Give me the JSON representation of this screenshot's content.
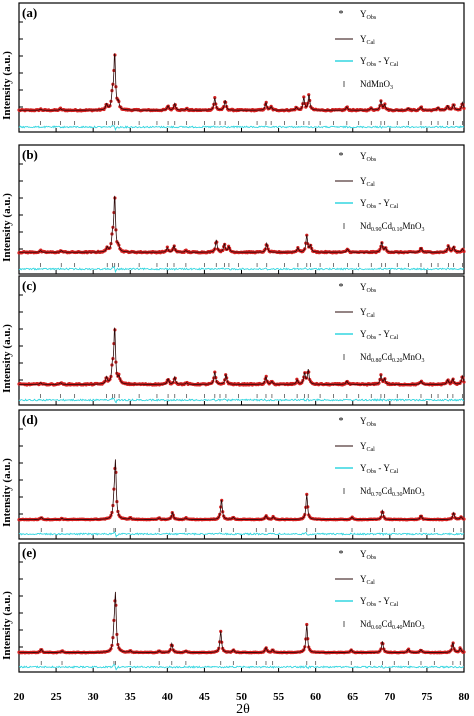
{
  "chart_data": {
    "type": "line",
    "xlabel": "2θ",
    "ylabel": "Intensity (a.u.)",
    "xlim": [
      20,
      80
    ],
    "x_ticks": [
      20,
      25,
      30,
      35,
      40,
      45,
      50,
      55,
      60,
      65,
      70,
      75,
      80
    ],
    "colors": {
      "obs": "#d42020",
      "cal": "#2a0808",
      "diff": "#33d6e0",
      "bragg": "#555555"
    },
    "panels": [
      {
        "label": "(a)",
        "legend": {
          "obs": "Y",
          "obs_sub": "Obs",
          "cal": "Y",
          "cal_sub": "Cal",
          "diff_a": "Y",
          "diff_a_sub": "Obs",
          "diff_mid": " - Y",
          "diff_b_sub": "Cal",
          "phase": [
            [
              "NdMnO",
              ""
            ],
            [
              "3",
              "sub"
            ]
          ]
        },
        "baseline": 0.12,
        "noise": 0.012,
        "peaks": [
          [
            22.9,
            0.02
          ],
          [
            25.6,
            0.03
          ],
          [
            31.8,
            0.1
          ],
          [
            32.6,
            0.28
          ],
          [
            32.9,
            1.0
          ],
          [
            33.4,
            0.12
          ],
          [
            40.1,
            0.08
          ],
          [
            41.0,
            0.12
          ],
          [
            42.6,
            0.03
          ],
          [
            46.4,
            0.22
          ],
          [
            47.8,
            0.18
          ],
          [
            53.3,
            0.14
          ],
          [
            54.0,
            0.06
          ],
          [
            57.4,
            0.05
          ],
          [
            58.4,
            0.22
          ],
          [
            59.1,
            0.28
          ],
          [
            64.2,
            0.06
          ],
          [
            67.5,
            0.04
          ],
          [
            68.8,
            0.17
          ],
          [
            69.3,
            0.1
          ],
          [
            72.5,
            0.04
          ],
          [
            74.2,
            0.06
          ],
          [
            76.5,
            0.05
          ],
          [
            77.8,
            0.08
          ],
          [
            78.6,
            0.1
          ],
          [
            79.8,
            0.14
          ]
        ],
        "bragg": [
          22.9,
          25.6,
          27.5,
          31.8,
          32.6,
          32.9,
          33.4,
          36.2,
          38.6,
          40.1,
          41.0,
          42.6,
          45.0,
          46.4,
          47.1,
          47.8,
          49.6,
          52.1,
          53.3,
          54.0,
          55.8,
          57.4,
          58.4,
          59.1,
          60.6,
          62.4,
          64.2,
          65.8,
          67.5,
          68.8,
          69.3,
          71.0,
          72.5,
          74.2,
          75.6,
          76.5,
          77.8,
          78.6,
          79.8
        ]
      },
      {
        "label": "(b)",
        "legend": {
          "obs": "Y",
          "obs_sub": "Obs",
          "cal": "Y",
          "cal_sub": "Cal",
          "diff_a": "Y",
          "diff_a_sub": "Obs",
          "diff_mid": " - Y",
          "diff_b_sub": "Cal",
          "phase": [
            [
              "Nd",
              ""
            ],
            [
              "0.90",
              "sub"
            ],
            [
              "Cd",
              ""
            ],
            [
              "0.10",
              "sub"
            ],
            [
              "MnO",
              ""
            ],
            [
              "3",
              "sub"
            ]
          ]
        },
        "baseline": 0.12,
        "noise": 0.012,
        "peaks": [
          [
            22.9,
            0.03
          ],
          [
            25.7,
            0.03
          ],
          [
            31.9,
            0.08
          ],
          [
            32.6,
            0.25
          ],
          [
            32.9,
            1.0
          ],
          [
            33.4,
            0.1
          ],
          [
            40.0,
            0.08
          ],
          [
            40.9,
            0.12
          ],
          [
            42.5,
            0.03
          ],
          [
            46.6,
            0.22
          ],
          [
            47.7,
            0.15
          ],
          [
            48.3,
            0.1
          ],
          [
            53.4,
            0.16
          ],
          [
            57.6,
            0.08
          ],
          [
            58.8,
            0.3
          ],
          [
            59.3,
            0.12
          ],
          [
            64.3,
            0.06
          ],
          [
            68.9,
            0.18
          ],
          [
            69.4,
            0.08
          ],
          [
            74.2,
            0.08
          ],
          [
            77.9,
            0.12
          ],
          [
            78.6,
            0.1
          ],
          [
            79.8,
            0.06
          ]
        ],
        "bragg": [
          22.9,
          25.7,
          27.5,
          31.9,
          32.6,
          32.9,
          33.4,
          36.2,
          38.6,
          40.0,
          40.9,
          42.5,
          45.0,
          46.6,
          47.7,
          48.3,
          49.6,
          52.1,
          53.4,
          55.8,
          57.6,
          58.8,
          59.3,
          60.6,
          62.4,
          64.3,
          65.8,
          67.5,
          68.9,
          69.4,
          71.0,
          72.5,
          74.2,
          75.6,
          76.5,
          77.9,
          78.6,
          79.8
        ]
      },
      {
        "label": "(c)",
        "legend": {
          "obs": "Y",
          "obs_sub": "Obs",
          "cal": "Y",
          "cal_sub": "Cal",
          "diff_a": "Y",
          "diff_a_sub": "Obs",
          "diff_mid": " - Y",
          "diff_b_sub": "Cal",
          "phase": [
            [
              "Nd",
              ""
            ],
            [
              "0.80",
              "sub"
            ],
            [
              "Cd",
              ""
            ],
            [
              "0.20",
              "sub"
            ],
            [
              "MnO",
              ""
            ],
            [
              "3",
              "sub"
            ]
          ]
        },
        "baseline": 0.1,
        "noise": 0.013,
        "peaks": [
          [
            22.9,
            0.03
          ],
          [
            25.6,
            0.03
          ],
          [
            31.8,
            0.12
          ],
          [
            32.6,
            0.28
          ],
          [
            32.9,
            1.0
          ],
          [
            33.5,
            0.12
          ],
          [
            40.1,
            0.1
          ],
          [
            41.0,
            0.13
          ],
          [
            42.6,
            0.03
          ],
          [
            46.4,
            0.22
          ],
          [
            47.9,
            0.18
          ],
          [
            53.3,
            0.14
          ],
          [
            54.1,
            0.05
          ],
          [
            57.5,
            0.08
          ],
          [
            58.5,
            0.2
          ],
          [
            59.0,
            0.26
          ],
          [
            64.2,
            0.06
          ],
          [
            68.8,
            0.16
          ],
          [
            69.3,
            0.1
          ],
          [
            74.2,
            0.06
          ],
          [
            77.8,
            0.08
          ],
          [
            78.5,
            0.1
          ],
          [
            79.8,
            0.15
          ]
        ],
        "bragg": [
          22.9,
          25.6,
          27.5,
          31.8,
          32.6,
          32.9,
          33.5,
          36.2,
          38.6,
          40.1,
          41.0,
          42.6,
          45.0,
          46.4,
          47.1,
          47.9,
          49.6,
          52.1,
          53.3,
          54.1,
          55.8,
          57.5,
          58.5,
          59.0,
          60.6,
          62.4,
          64.2,
          65.8,
          67.5,
          68.8,
          69.3,
          71.0,
          72.5,
          74.2,
          75.6,
          76.5,
          77.8,
          78.5,
          79.8
        ]
      },
      {
        "label": "(d)",
        "legend": {
          "obs": "Y",
          "obs_sub": "Obs",
          "cal": "Y",
          "cal_sub": "Cal",
          "diff_a": "Y",
          "diff_a_sub": "Obs",
          "diff_mid": " - Y",
          "diff_b_sub": "Cal",
          "phase": [
            [
              "Nd",
              ""
            ],
            [
              "0.70",
              "sub"
            ],
            [
              "Cd",
              ""
            ],
            [
              "0.30",
              "sub"
            ],
            [
              "MnO",
              ""
            ],
            [
              "3",
              "sub"
            ]
          ]
        },
        "baseline": 0.08,
        "noise": 0.006,
        "peaks": [
          [
            23.0,
            0.04
          ],
          [
            25.8,
            0.02
          ],
          [
            32.8,
            0.25
          ],
          [
            33.0,
            1.0
          ],
          [
            35.0,
            0.03
          ],
          [
            38.9,
            0.03
          ],
          [
            40.7,
            0.13
          ],
          [
            42.5,
            0.03
          ],
          [
            47.3,
            0.36
          ],
          [
            48.9,
            0.04
          ],
          [
            53.3,
            0.07
          ],
          [
            54.3,
            0.05
          ],
          [
            58.8,
            0.45
          ],
          [
            64.9,
            0.04
          ],
          [
            69.0,
            0.16
          ],
          [
            74.2,
            0.07
          ],
          [
            78.6,
            0.12
          ],
          [
            79.6,
            0.05
          ]
        ],
        "bragg": [
          23.0,
          25.8,
          32.8,
          33.0,
          35.0,
          38.9,
          40.7,
          42.5,
          47.3,
          48.9,
          52.0,
          53.3,
          54.3,
          58.8,
          60.0,
          64.9,
          67.4,
          69.0,
          70.6,
          74.2,
          76.0,
          78.6,
          79.6
        ]
      },
      {
        "label": "(e)",
        "legend": {
          "obs": "Y",
          "obs_sub": "Obs",
          "cal": "Y",
          "cal_sub": "Cal",
          "diff_a": "Y",
          "diff_a_sub": "Obs",
          "diff_mid": " - Y",
          "diff_b_sub": "Cal",
          "phase": [
            [
              "Nd",
              ""
            ],
            [
              "0.60",
              "sub"
            ],
            [
              "Cd",
              ""
            ],
            [
              "0.40",
              "sub"
            ],
            [
              "MnO",
              ""
            ],
            [
              "3",
              "sub"
            ]
          ]
        },
        "baseline": 0.08,
        "noise": 0.006,
        "peaks": [
          [
            23.0,
            0.06
          ],
          [
            25.8,
            0.03
          ],
          [
            32.8,
            0.28
          ],
          [
            33.0,
            1.0
          ],
          [
            35.0,
            0.03
          ],
          [
            38.9,
            0.03
          ],
          [
            40.6,
            0.16
          ],
          [
            42.5,
            0.03
          ],
          [
            47.2,
            0.38
          ],
          [
            48.9,
            0.05
          ],
          [
            53.3,
            0.09
          ],
          [
            54.2,
            0.05
          ],
          [
            58.8,
            0.5
          ],
          [
            64.8,
            0.05
          ],
          [
            69.0,
            0.2
          ],
          [
            72.5,
            0.06
          ],
          [
            74.2,
            0.05
          ],
          [
            78.5,
            0.18
          ],
          [
            79.5,
            0.08
          ]
        ],
        "bragg": [
          23.0,
          25.8,
          32.8,
          33.0,
          35.0,
          38.9,
          40.6,
          42.5,
          47.2,
          48.9,
          52.0,
          53.3,
          54.2,
          58.8,
          60.0,
          64.8,
          67.4,
          69.0,
          70.6,
          72.5,
          74.2,
          76.0,
          78.5,
          79.5
        ]
      }
    ]
  }
}
